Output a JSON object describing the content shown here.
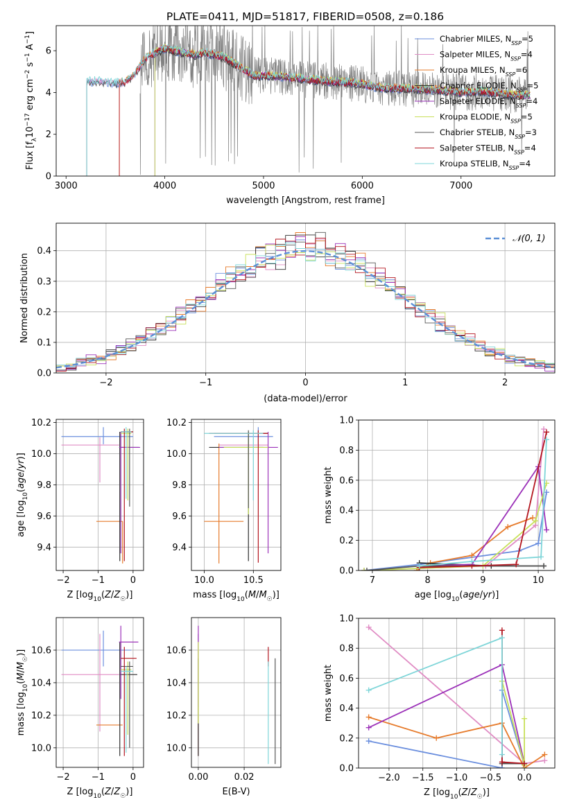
{
  "figure": {
    "title": "PLATE=0411, MJD=51817, FIBERID=0508, z=0.186"
  },
  "colors": {
    "Chabrier MILES": "#6a8ede",
    "Salpeter MILES": "#e08cc4",
    "Kroupa MILES": "#e67a2a",
    "Chabrier ELODIE": "#2e2e2e",
    "Salpeter ELODIE": "#9b30b8",
    "Kroupa ELODIE": "#c8e05a",
    "Chabrier STELIB": "#555555",
    "Salpeter STELIB": "#b3141e",
    "Kroupa STELIB": "#7dd5d8",
    "data": "#808080",
    "gaussian": "#5b8fd6"
  },
  "chart_data": [
    {
      "id": "spectrum",
      "type": "line",
      "xlabel": "wavelength [Angstrom, rest frame]",
      "ylabel": "Flux [f_λ 10^-17 erg cm^-2 s^-1 A^-1]",
      "xlim": [
        2900,
        7950
      ],
      "ylim": [
        0,
        7.2
      ],
      "xticks": [
        3000,
        4000,
        5000,
        6000,
        7000
      ],
      "yticks": [
        0,
        2,
        4,
        6
      ],
      "grid": false,
      "legend_position": "right",
      "legend": [
        {
          "name": "Chabrier MILES",
          "nssp": "5"
        },
        {
          "name": "Salpeter MILES",
          "nssp": "4"
        },
        {
          "name": "Kroupa MILES",
          "nssp": "6"
        },
        {
          "name": "Chabrier ELODIE",
          "nssp": "5"
        },
        {
          "name": "Salpeter ELODIE",
          "nssp": "4"
        },
        {
          "name": "Kroupa ELODIE",
          "nssp": "5"
        },
        {
          "name": "Chabrier STELIB",
          "nssp": "3"
        },
        {
          "name": "Salpeter STELIB",
          "nssp": "4"
        },
        {
          "name": "Kroupa STELIB",
          "nssp": "4"
        }
      ],
      "model_continuum": {
        "x": [
          3200,
          3300,
          3400,
          3500,
          3600,
          3700,
          3800,
          3900,
          4000,
          4100,
          4200,
          4300,
          4400,
          4500,
          4600,
          4700,
          4800,
          4900,
          5000,
          5200,
          5400,
          5600,
          5800,
          6000,
          6200,
          6400,
          6600,
          6800,
          7000,
          7200,
          7400,
          7600,
          7700
        ],
        "y": [
          4.5,
          4.55,
          4.5,
          4.45,
          4.5,
          4.9,
          5.6,
          5.9,
          6.1,
          6.0,
          5.9,
          5.8,
          5.9,
          5.8,
          5.7,
          5.4,
          5.1,
          4.8,
          4.8,
          4.75,
          4.65,
          4.55,
          4.5,
          4.4,
          4.2,
          4.2,
          4.15,
          4.1,
          4.0,
          4.05,
          3.95,
          3.85,
          3.85
        ]
      },
      "model_starts": {
        "Chabrier MILES": 3210,
        "Salpeter MILES": 3210,
        "Kroupa MILES": 3540,
        "Chabrier ELODIE": 3900,
        "Salpeter ELODIE": 3900,
        "Kroupa ELODIE": 3900,
        "Chabrier STELIB": 3210,
        "Salpeter STELIB": 3540,
        "Kroupa STELIB": 3210
      }
    },
    {
      "id": "residuals",
      "type": "line",
      "xlabel": "(data-model)/error",
      "ylabel": "Normed distribution",
      "xlim": [
        -2.5,
        2.5
      ],
      "ylim": [
        0,
        0.49
      ],
      "xticks": [
        -2,
        -1,
        0,
        1,
        2
      ],
      "yticks": [
        0.0,
        0.1,
        0.2,
        0.3,
        0.4
      ],
      "grid": true,
      "legend_position": "top-right",
      "gaussian_label": "𝒩(0, 1)",
      "bin_width": 0.1
    },
    {
      "id": "age-vs-Z",
      "type": "scatter",
      "xlabel": "Z [log10(Z/Z☉)]",
      "ylabel": "age [log10(age/yr)]",
      "xlim": [
        -2.2,
        0.3
      ],
      "ylim": [
        9.25,
        10.22
      ],
      "xticks": [
        -2,
        -1,
        0
      ],
      "yticks": [
        9.4,
        9.6,
        9.8,
        10.0,
        10.2
      ],
      "grid": true,
      "points": [
        {
          "model": "Chabrier MILES",
          "x": -0.85,
          "y": 10.11,
          "xerr": [
            1.2,
            0.85
          ],
          "yerr": [
            0.05,
            0.06
          ]
        },
        {
          "model": "Salpeter MILES",
          "x": -0.95,
          "y": 10.055,
          "xerr": [
            1.1,
            0.55
          ],
          "yerr": [
            0.24,
            0.05
          ]
        },
        {
          "model": "Kroupa MILES",
          "x": -0.3,
          "y": 9.565,
          "xerr": [
            0.75,
            0.0
          ],
          "yerr": [
            0.27,
            0.0
          ]
        },
        {
          "model": "Chabrier ELODIE",
          "x": -0.38,
          "y": 10.04,
          "xerr": [
            0.0,
            0.55
          ],
          "yerr": [
            0.73,
            0.1
          ]
        },
        {
          "model": "Salpeter ELODIE",
          "x": -0.35,
          "y": 10.04,
          "xerr": [
            0.05,
            0.55
          ],
          "yerr": [
            0.68,
            0.1
          ]
        },
        {
          "model": "Kroupa ELODIE",
          "x": -0.15,
          "y": 10.13,
          "xerr": [
            0.2,
            0.1
          ],
          "yerr": [
            0.43,
            0.03
          ]
        },
        {
          "model": "Chabrier STELIB",
          "x": -0.1,
          "y": 10.14,
          "xerr": [
            0.25,
            0.1
          ],
          "yerr": [
            0.48,
            0.02
          ]
        },
        {
          "model": "Salpeter STELIB",
          "x": -0.25,
          "y": 10.14,
          "xerr": [
            0.1,
            0.25
          ],
          "yerr": [
            0.83,
            0.02
          ]
        },
        {
          "model": "Kroupa STELIB",
          "x": -0.2,
          "y": 10.14,
          "xerr": [
            0.15,
            0.15
          ],
          "yerr": [
            0.43,
            0.03
          ]
        }
      ]
    },
    {
      "id": "age-vs-mass",
      "type": "scatter",
      "xlabel": "mass [log10(M/M☉)]",
      "ylabel": "",
      "xlim": [
        9.87,
        10.78
      ],
      "ylim": [
        9.25,
        10.22
      ],
      "xticks": [
        10.0,
        10.5
      ],
      "yticks": [
        9.4,
        9.6,
        9.8,
        10.0,
        10.2
      ],
      "grid": true,
      "points": [
        {
          "model": "Chabrier MILES",
          "x": 10.55,
          "y": 10.11,
          "xerr": [
            0.45,
            0.15
          ],
          "yerr": [
            0.05,
            0.06
          ]
        },
        {
          "model": "Salpeter MILES",
          "x": 10.45,
          "y": 10.055,
          "xerr": [
            0.3,
            0.2
          ],
          "yerr": [
            0.24,
            0.05
          ]
        },
        {
          "model": "Kroupa MILES",
          "x": 10.15,
          "y": 9.565,
          "xerr": [
            0.15,
            0.25
          ],
          "yerr": [
            0.27,
            0.5
          ]
        },
        {
          "model": "Chabrier ELODIE",
          "x": 10.45,
          "y": 10.04,
          "xerr": [
            0.4,
            0.15
          ],
          "yerr": [
            0.73,
            0.1
          ]
        },
        {
          "model": "Salpeter ELODIE",
          "x": 10.65,
          "y": 10.04,
          "xerr": [
            0.5,
            0.1
          ],
          "yerr": [
            0.68,
            0.1
          ]
        },
        {
          "model": "Kroupa ELODIE",
          "x": 10.45,
          "y": 10.04,
          "xerr": [
            0.25,
            0.2
          ],
          "yerr": [
            0.43,
            0.1
          ]
        },
        {
          "model": "Chabrier STELIB",
          "x": 10.45,
          "y": 10.13,
          "xerr": [
            0.35,
            0.2
          ],
          "yerr": [
            0.48,
            0.02
          ]
        },
        {
          "model": "Salpeter STELIB",
          "x": 10.55,
          "y": 10.13,
          "xerr": [
            0.5,
            0.1
          ],
          "yerr": [
            0.83,
            0.02
          ]
        },
        {
          "model": "Kroupa STELIB",
          "x": 10.5,
          "y": 10.13,
          "xerr": [
            0.5,
            0.1
          ],
          "yerr": [
            0.43,
            0.02
          ]
        }
      ]
    },
    {
      "id": "weight-vs-age",
      "type": "line",
      "xlabel": "age [log10(age/yr)]",
      "ylabel": "mass weight",
      "xlim": [
        6.75,
        10.3
      ],
      "ylim": [
        0,
        1.0
      ],
      "xticks": [
        7,
        8,
        9,
        10
      ],
      "yticks": [
        0.0,
        0.2,
        0.4,
        0.6,
        0.8,
        1.0
      ],
      "grid": true,
      "series": [
        {
          "model": "Chabrier MILES",
          "x": [
            6.85,
            7.85,
            9.65,
            10.0,
            10.15
          ],
          "y": [
            0.0,
            0.04,
            0.13,
            0.18,
            0.52
          ]
        },
        {
          "model": "Salpeter MILES",
          "x": [
            6.85,
            9.05,
            9.95,
            10.1
          ],
          "y": [
            0.0,
            0.03,
            0.3,
            0.94
          ]
        },
        {
          "model": "Kroupa MILES",
          "x": [
            7.8,
            8.05,
            8.8,
            9.45,
            9.9
          ],
          "y": [
            0.0,
            0.05,
            0.1,
            0.29,
            0.35
          ]
        },
        {
          "model": "Chabrier ELODIE",
          "x": [
            7.85,
            9.15,
            10.1
          ],
          "y": [
            0.05,
            0.03,
            0.03
          ]
        },
        {
          "model": "Salpeter ELODIE",
          "x": [
            7.85,
            8.8,
            10.0,
            10.15
          ],
          "y": [
            0.03,
            0.04,
            0.69,
            0.27
          ]
        },
        {
          "model": "Kroupa ELODIE",
          "x": [
            6.85,
            9.0,
            9.95,
            10.15
          ],
          "y": [
            0.0,
            0.03,
            0.33,
            0.58
          ]
        },
        {
          "model": "Chabrier STELIB",
          "x": [
            6.9,
            7.85,
            10.1
          ],
          "y": [
            0.0,
            0.03,
            0.03
          ]
        },
        {
          "model": "Salpeter STELIB",
          "x": [
            7.85,
            8.8,
            9.6,
            10.15
          ],
          "y": [
            0.02,
            0.03,
            0.04,
            0.92
          ]
        },
        {
          "model": "Kroupa STELIB",
          "x": [
            7.85,
            8.8,
            10.05,
            10.15
          ],
          "y": [
            0.03,
            0.06,
            0.09,
            0.87
          ]
        }
      ]
    },
    {
      "id": "mass-vs-Z",
      "type": "scatter",
      "xlabel": "Z [log10(Z/Z☉)]",
      "ylabel": "mass [log10(M/M☉)]",
      "xlim": [
        -2.2,
        0.3
      ],
      "ylim": [
        9.88,
        10.8
      ],
      "xticks": [
        -2,
        -1,
        0
      ],
      "yticks": [
        10.0,
        10.2,
        10.4,
        10.6
      ],
      "grid": true,
      "points": [
        {
          "model": "Chabrier MILES",
          "x": -0.85,
          "y": 10.6,
          "xerr": [
            1.2,
            0.8
          ],
          "yerr": [
            0.1,
            0.12
          ]
        },
        {
          "model": "Salpeter MILES",
          "x": -0.95,
          "y": 10.45,
          "xerr": [
            1.1,
            0.55
          ],
          "yerr": [
            0.35,
            0.25
          ]
        },
        {
          "model": "Kroupa MILES",
          "x": -0.3,
          "y": 10.14,
          "xerr": [
            0.75,
            0.0
          ],
          "yerr": [
            0.0,
            0.0
          ]
        },
        {
          "model": "Chabrier ELODIE",
          "x": -0.38,
          "y": 10.45,
          "xerr": [
            0.0,
            0.5
          ],
          "yerr": [
            0.5,
            0.2
          ]
        },
        {
          "model": "Salpeter ELODIE",
          "x": -0.35,
          "y": 10.65,
          "xerr": [
            0.05,
            0.5
          ],
          "yerr": [
            0.35,
            0.1
          ]
        },
        {
          "model": "Kroupa ELODIE",
          "x": -0.15,
          "y": 10.48,
          "xerr": [
            0.2,
            0.1
          ],
          "yerr": [
            0.4,
            0.05
          ]
        },
        {
          "model": "Chabrier STELIB",
          "x": -0.1,
          "y": 10.5,
          "xerr": [
            0.25,
            0.1
          ],
          "yerr": [
            0.5,
            0.03
          ]
        },
        {
          "model": "Salpeter STELIB",
          "x": -0.25,
          "y": 10.55,
          "xerr": [
            0.1,
            0.35
          ],
          "yerr": [
            0.6,
            0.07
          ]
        },
        {
          "model": "Kroupa STELIB",
          "x": -0.2,
          "y": 10.47,
          "xerr": [
            0.15,
            0.2
          ],
          "yerr": [
            0.5,
            0.03
          ]
        }
      ]
    },
    {
      "id": "mass-vs-ebv",
      "type": "scatter",
      "xlabel": "E(B-V)",
      "ylabel": "",
      "xlim": [
        -0.003,
        0.036
      ],
      "ylim": [
        9.88,
        10.8
      ],
      "xticks": [
        0.0,
        0.02
      ],
      "yticks": [
        10.0,
        10.2,
        10.4,
        10.6
      ],
      "grid": true,
      "points": [
        {
          "model": "Chabrier MILES",
          "x": 0.0,
          "y": 10.4,
          "yerr": [
            0.45,
            0.3
          ]
        },
        {
          "model": "Salpeter MILES",
          "x": 0.0,
          "y": 10.4,
          "yerr": [
            0.45,
            0.3
          ]
        },
        {
          "model": "Kroupa MILES",
          "x": 0.0,
          "y": 10.3,
          "yerr": [
            0.35,
            0.3
          ]
        },
        {
          "model": "Chabrier ELODIE",
          "x": 0.0,
          "y": 10.2,
          "yerr": [
            0.25,
            0.35
          ]
        },
        {
          "model": "Salpeter ELODIE",
          "x": 0.0,
          "y": 10.6,
          "yerr": [
            0.35,
            0.15
          ]
        },
        {
          "model": "Kroupa ELODIE",
          "x": 0.0,
          "y": 10.4,
          "yerr": [
            0.25,
            0.25
          ]
        },
        {
          "model": "Chabrier STELIB",
          "x": 0.0335,
          "y": 10.2,
          "yerr": [
            0.3,
            0.35
          ]
        },
        {
          "model": "Salpeter STELIB",
          "x": 0.0305,
          "y": 10.55,
          "yerr": [
            0.05,
            0.07
          ]
        },
        {
          "model": "Kroupa STELIB",
          "x": 0.0305,
          "y": 10.2,
          "yerr": [
            0.3,
            0.33
          ]
        }
      ]
    },
    {
      "id": "weight-vs-Z",
      "type": "line",
      "xlabel": "Z [log10(Z/Z☉)]",
      "ylabel": "mass weight",
      "xlim": [
        -2.45,
        0.45
      ],
      "ylim": [
        0,
        1.0
      ],
      "xticks": [
        -2.0,
        -1.5,
        -1.0,
        -0.5,
        0.0
      ],
      "yticks": [
        0.0,
        0.2,
        0.4,
        0.6,
        0.8,
        1.0
      ],
      "grid": true,
      "series": [
        {
          "model": "Chabrier MILES",
          "x": [
            -2.3,
            -0.33,
            -0.33,
            0.0
          ],
          "y": [
            0.18,
            0.0,
            0.52,
            0.02
          ]
        },
        {
          "model": "Salpeter MILES",
          "x": [
            -2.3,
            0.0,
            0.3
          ],
          "y": [
            0.94,
            0.03,
            0.05
          ]
        },
        {
          "model": "Kroupa MILES",
          "x": [
            -2.3,
            -1.3,
            -0.33,
            0.0,
            0.3
          ],
          "y": [
            0.34,
            0.2,
            0.3,
            0.0,
            0.09
          ]
        },
        {
          "model": "Chabrier ELODIE",
          "x": [
            -0.33,
            0.0
          ],
          "y": [
            0.03,
            0.03
          ]
        },
        {
          "model": "Salpeter ELODIE",
          "x": [
            -2.3,
            -0.33,
            0.0
          ],
          "y": [
            0.27,
            0.69,
            0.03
          ]
        },
        {
          "model": "Kroupa ELODIE",
          "x": [
            -0.33,
            0.0,
            0.0
          ],
          "y": [
            0.58,
            0.02,
            0.33
          ]
        },
        {
          "model": "Chabrier STELIB",
          "x": [
            -0.33,
            0.0
          ],
          "y": [
            0.03,
            0.03
          ]
        },
        {
          "model": "Salpeter STELIB",
          "x": [
            -0.33,
            -0.33,
            0.0
          ],
          "y": [
            0.92,
            0.04,
            0.03
          ]
        },
        {
          "model": "Kroupa STELIB",
          "x": [
            -2.3,
            -0.33,
            -0.33
          ],
          "y": [
            0.52,
            0.87,
            0.09
          ]
        }
      ]
    }
  ]
}
